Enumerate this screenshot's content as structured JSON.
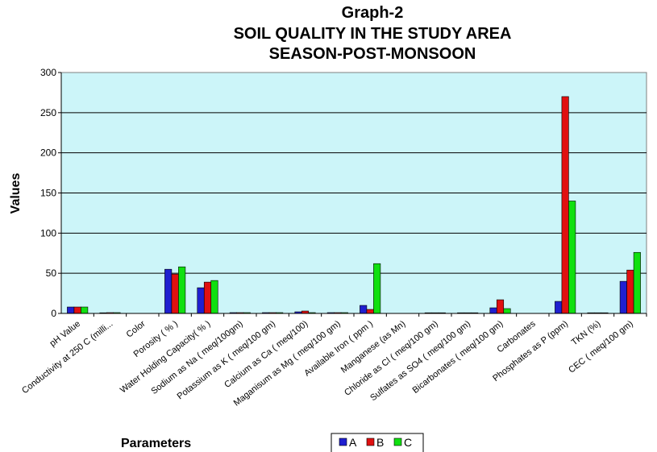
{
  "chart_data": {
    "type": "bar",
    "title_lines": [
      "Graph-2",
      "SOIL QUALITY IN THE STUDY AREA",
      "SEASON-POST-MONSOON"
    ],
    "xlabel": "Parameters",
    "ylabel": "Values",
    "ylim": [
      0,
      300
    ],
    "yticks": [
      0,
      50,
      100,
      150,
      200,
      250,
      300
    ],
    "grid": true,
    "legend_position": "bottom",
    "categories": [
      "pH Value",
      "Conductivity at 250 C (milli...",
      "Color",
      "Porosity ( % )",
      "Water Holding Capacity( % )",
      "Sodium as Na  ( meq/100gm)",
      "Potassium as K  ( meq/100 gm)",
      "Calcium as Ca ( meq/100)",
      "Maganisum as Mg  ( meq/100 gm)",
      "Available  Iron ( ppm )",
      "Manganese (as Mn)",
      "Chloride as Cl  ( meq/100 gm)",
      "Sulfates as SO4   ( meq/100 gm)",
      "Bicarbonates ( meq/100 gm)",
      "Carbonates",
      "Phosphates as P  (ppm)",
      "TKN (%)",
      "CEC  ( meq/100 gm)"
    ],
    "series": [
      {
        "name": "A",
        "color": "#1f1fd0",
        "values": [
          8,
          0.5,
          0,
          55,
          32,
          1,
          1,
          2,
          1,
          10,
          0,
          0.5,
          0.5,
          7,
          0,
          15,
          0.3,
          40
        ]
      },
      {
        "name": "B",
        "color": "#e01010",
        "values": [
          8,
          1,
          0,
          49,
          39,
          1,
          1,
          3,
          1,
          5,
          0,
          0.5,
          0.5,
          17,
          0,
          270,
          0.3,
          54
        ]
      },
      {
        "name": "C",
        "color": "#10e010",
        "values": [
          8,
          1,
          0,
          58,
          41,
          1,
          1,
          1,
          1,
          62,
          0,
          0.5,
          0.5,
          6,
          0,
          140,
          0.3,
          76
        ]
      }
    ]
  }
}
